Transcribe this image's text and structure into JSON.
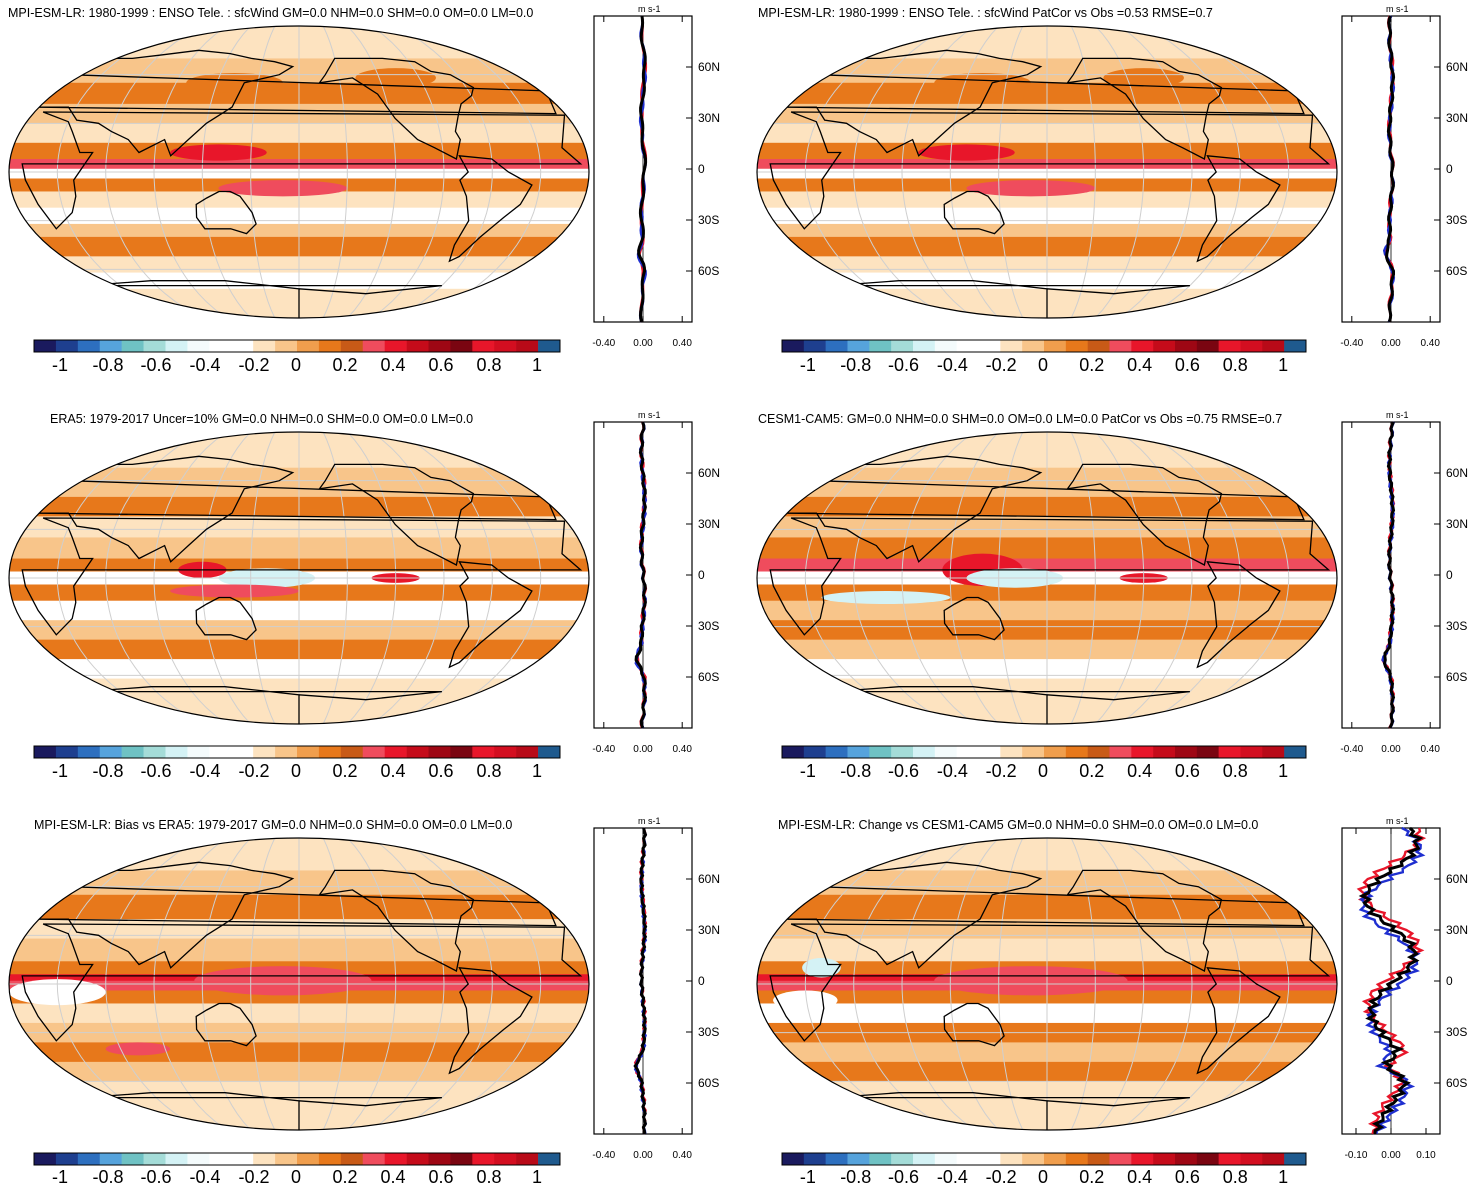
{
  "colorbar": {
    "colors": [
      "#1a1a5e",
      "#1e3f8f",
      "#2d6fbf",
      "#56a3dc",
      "#6fc2c4",
      "#a4dcd8",
      "#d4f2f5",
      "#f4fbfc",
      "#ffffff",
      "#ffffff",
      "#fde3c0",
      "#f8c58a",
      "#f09e4d",
      "#e7781b",
      "#c85a17",
      "#ef4c5d",
      "#e8162a",
      "#c50b1a",
      "#9e0714",
      "#7a0511",
      "#e8162a",
      "#d30e20",
      "#b80a18",
      "#1f5a8e"
    ],
    "labels": [
      "-1",
      "-0.8",
      "-0.6",
      "-0.4",
      "-0.2",
      "0",
      "0.2",
      "0.4",
      "0.6",
      "0.8",
      "1"
    ]
  },
  "profile": {
    "units": "m s-1",
    "lat_ticks": [
      "60N",
      "30N",
      "0",
      "30S",
      "60S"
    ],
    "line_colors": {
      "model": "#e8162a",
      "reference": "#1f2fd0",
      "mean": "#000000"
    }
  },
  "panels": [
    {
      "id": "p1",
      "title": "MPI-ESM-LR: 1980-1999 : ENSO Tele. : sfcWind GM=0.0 NHM=0.0 SHM=0.0 OM=0.0 LM=0.0",
      "x_ticks": [
        "-0.40",
        "0.00",
        "0.40"
      ],
      "xmax": 0.5
    },
    {
      "id": "p2",
      "title": "MPI-ESM-LR: 1980-1999 : ENSO Tele. : sfcWind PatCor vs Obs =0.53 RMSE=0.7",
      "x_ticks": [
        "-0.40",
        "0.00",
        "0.40"
      ],
      "xmax": 0.5
    },
    {
      "id": "p3",
      "title": "ERA5: 1979-2017 Uncer=10% GM=0.0 NHM=0.0 SHM=0.0 OM=0.0 LM=0.0",
      "x_ticks": [
        "-0.40",
        "0.00",
        "0.40"
      ],
      "xmax": 0.5
    },
    {
      "id": "p4",
      "title": "CESM1-CAM5: GM=0.0 NHM=0.0 SHM=0.0 OM=0.0 LM=0.0 PatCor vs Obs =0.75 RMSE=0.7",
      "x_ticks": [
        "-0.40",
        "0.00",
        "0.40"
      ],
      "xmax": 0.5
    },
    {
      "id": "p5",
      "title": "MPI-ESM-LR: Bias vs ERA5: 1979-2017 GM=0.0 NHM=0.0 SHM=0.0 OM=0.0 LM=0.0",
      "x_ticks": [
        "-0.40",
        "0.00",
        "0.40"
      ],
      "xmax": 0.5
    },
    {
      "id": "p6",
      "title": "MPI-ESM-LR: Change vs CESM1-CAM5 GM=0.0 NHM=0.0 SHM=0.0 OM=0.0 LM=0.0",
      "x_ticks": [
        "-0.10",
        "0.00",
        "0.10"
      ],
      "xmax": 0.14
    }
  ]
}
